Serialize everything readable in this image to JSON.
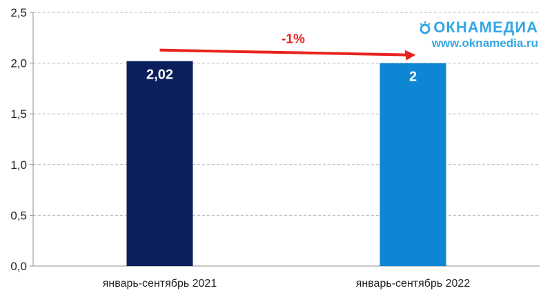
{
  "chart_data": {
    "type": "bar",
    "categories": [
      "январь-сентябрь 2021",
      "январь-сентябрь 2022"
    ],
    "values": [
      2.02,
      2.0
    ],
    "value_labels": [
      "2,02",
      "2"
    ],
    "bar_colors": [
      "#0b1f5c",
      "#0e86d4"
    ],
    "ylim": [
      0,
      2.5
    ],
    "yticks": [
      "0,0",
      "0,5",
      "1,0",
      "1,5",
      "2,0",
      "2,5"
    ],
    "ytick_values": [
      0,
      0.5,
      1.0,
      1.5,
      2.0,
      2.5
    ],
    "grid": true,
    "annotation": {
      "text": "-1%",
      "color": "#e8231f"
    },
    "title": "",
    "xlabel": "",
    "ylabel": ""
  },
  "watermark": {
    "brand": "ОКНАМЕДИА",
    "url": "www.oknamedia.ru",
    "color": "#34a6e4"
  }
}
